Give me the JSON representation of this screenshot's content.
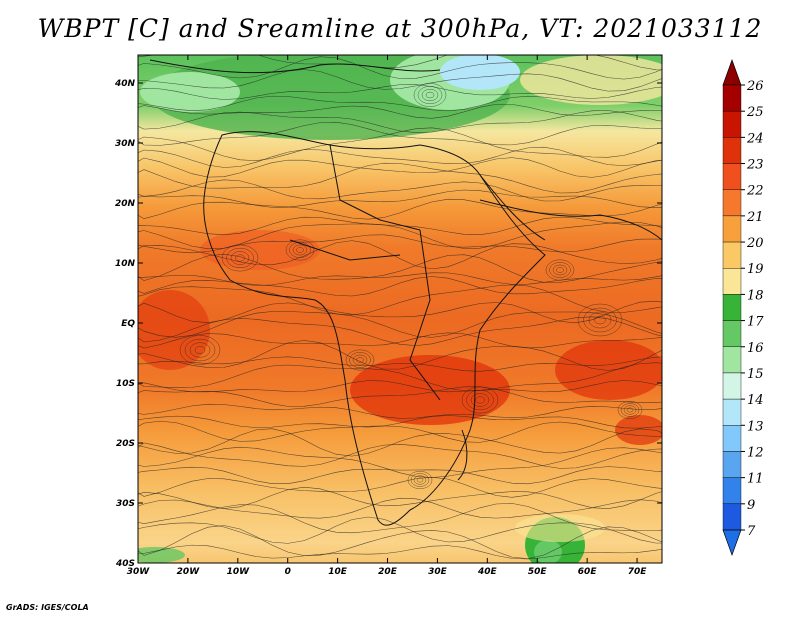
{
  "title": "WBPT [C] and Sreamline at 300hPa, VT: 2021033112",
  "credit": "GrADS: IGES/COLA",
  "map": {
    "lon_ticks": [
      "30W",
      "20W",
      "10W",
      "0",
      "10E",
      "20E",
      "30E",
      "40E",
      "50E",
      "60E",
      "70E"
    ],
    "lat_ticks": [
      "40N",
      "30N",
      "20N",
      "10N",
      "EQ",
      "10S",
      "20S",
      "30S",
      "40S"
    ]
  },
  "colorbar": {
    "labels": [
      "26",
      "25",
      "24",
      "23",
      "22",
      "21",
      "20",
      "19",
      "18",
      "17",
      "16",
      "15",
      "14",
      "13",
      "12",
      "11",
      "9",
      "7"
    ],
    "colors": [
      "#a50000",
      "#c81400",
      "#e0320a",
      "#f0501e",
      "#f5782d",
      "#f8a03c",
      "#fac864",
      "#fae696",
      "#37b437",
      "#64c864",
      "#a0e6a0",
      "#d2f5e6",
      "#b4e6fa",
      "#82c8fa",
      "#5aa5f0",
      "#3282eb",
      "#1e5ae1"
    ],
    "top_arrow_color": "#8c0000",
    "bottom_arrow_color": "#1e6ee6"
  }
}
